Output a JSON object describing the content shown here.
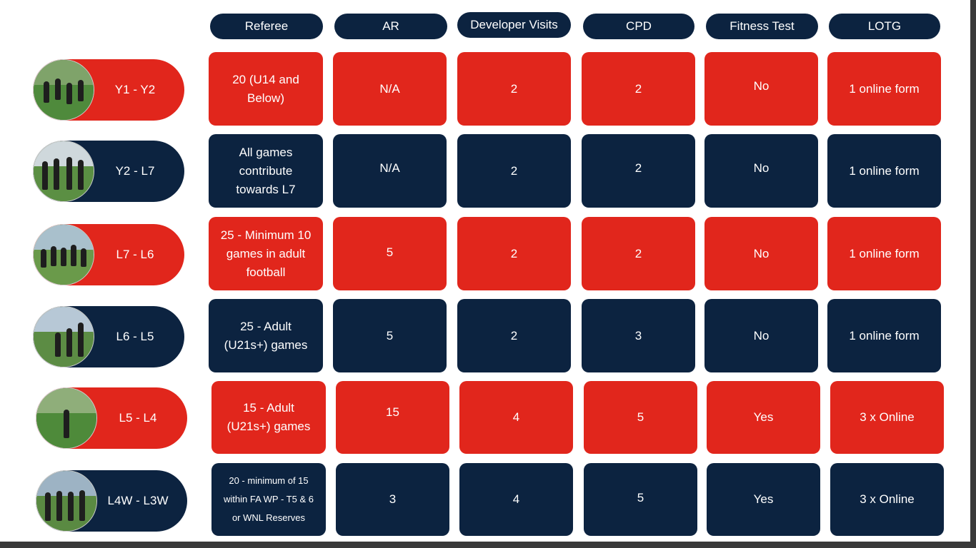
{
  "colors": {
    "red": "#e1261c",
    "navy": "#0c2340"
  },
  "headers": [
    "Referee",
    "AR",
    "Developer Visits",
    "CPD",
    "Fitness Test",
    "LOTG"
  ],
  "rows": [
    {
      "level": "Y1 - Y2",
      "color": "red",
      "photo": "referees-training-photo",
      "cells": [
        "20 (U14 and Below)",
        "N/A",
        "2",
        "2",
        "No",
        "1 online form"
      ]
    },
    {
      "level": "Y2 - L7",
      "color": "navy",
      "photo": "referees-group-photo",
      "cells": [
        "All games contribute towards L7",
        "N/A",
        "2",
        "2",
        "No",
        "1 online form"
      ]
    },
    {
      "level": "L7 - L6",
      "color": "red",
      "photo": "referees-running-photo",
      "cells": [
        "25 - Minimum 10 games in adult football",
        "5",
        "2",
        "2",
        "No",
        "1 online form"
      ]
    },
    {
      "level": "L6 - L5",
      "color": "navy",
      "photo": "assistant-referee-flags-photo",
      "cells": [
        "25 - Adult (U21s+) games",
        "5",
        "2",
        "3",
        "No",
        "1 online form"
      ]
    },
    {
      "level": "L5 - L4",
      "color": "red",
      "photo": "referee-on-pitch-photo",
      "cells": [
        "15 - Adult (U21s+) games",
        "15",
        "4",
        "5",
        "Yes",
        "3 x Online"
      ]
    },
    {
      "level": "L4W - L3W",
      "color": "navy",
      "photo": "women-referees-team-photo",
      "cells": [
        "20 - minimum of 15 within FA WP - T5 & 6 or WNL Reserves",
        "3",
        "4",
        "5",
        "Yes",
        "3 x Online"
      ]
    }
  ]
}
